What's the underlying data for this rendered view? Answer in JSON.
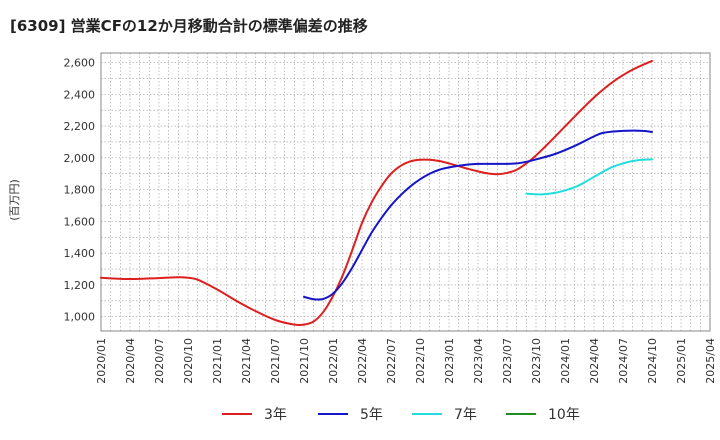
{
  "chart_data": {
    "type": "line",
    "title": "[6309]  営業CFの12か月移動合計の標準偏差の推移",
    "ylabel": "(百万円)",
    "xlabel": "",
    "ylim": [
      910,
      2660
    ],
    "yticks": [
      1000,
      1200,
      1400,
      1600,
      1800,
      2000,
      2200,
      2400,
      2600
    ],
    "ytick_labels": [
      "1,000",
      "1,200",
      "1,400",
      "1,600",
      "1,800",
      "2,000",
      "2,200",
      "2,400",
      "2,600"
    ],
    "xlim": [
      "2020-01",
      "2025-04"
    ],
    "xtick_labels": [
      "2020/01",
      "2020/04",
      "2020/07",
      "2020/10",
      "2021/01",
      "2021/04",
      "2021/07",
      "2021/10",
      "2022/01",
      "2022/04",
      "2022/07",
      "2022/10",
      "2023/01",
      "2023/04",
      "2023/07",
      "2023/10",
      "2024/01",
      "2024/04",
      "2024/07",
      "2024/10",
      "2025/01",
      "2025/04"
    ],
    "grid": true,
    "legend_position": "bottom",
    "series": [
      {
        "name": "3年",
        "color": "#dd1f1f",
        "x": [
          "2020-01",
          "2020-04",
          "2020-07",
          "2020-09",
          "2020-10",
          "2020-11",
          "2021-01",
          "2021-03",
          "2021-05",
          "2021-07",
          "2021-09",
          "2021-10",
          "2021-11",
          "2021-12",
          "2022-01",
          "2022-02",
          "2022-03",
          "2022-04",
          "2022-05",
          "2022-06",
          "2022-07",
          "2022-08",
          "2022-09",
          "2022-10",
          "2022-11",
          "2022-12",
          "2023-01",
          "2023-02",
          "2023-03",
          "2023-04",
          "2023-05",
          "2023-06",
          "2023-07",
          "2023-08",
          "2023-09",
          "2023-10",
          "2023-12",
          "2024-02",
          "2024-04",
          "2024-06",
          "2024-08",
          "2024-10"
        ],
        "values": [
          1245,
          1237,
          1243,
          1248,
          1245,
          1233,
          1172,
          1100,
          1035,
          980,
          950,
          950,
          970,
          1030,
          1130,
          1260,
          1420,
          1590,
          1720,
          1820,
          1900,
          1950,
          1978,
          1988,
          1988,
          1980,
          1965,
          1948,
          1930,
          1915,
          1902,
          1897,
          1905,
          1925,
          1965,
          2015,
          2135,
          2260,
          2380,
          2480,
          2555,
          2610
        ]
      },
      {
        "name": "5年",
        "color": "#1515c8",
        "x": [
          "2021-10",
          "2021-11",
          "2021-12",
          "2022-01",
          "2022-02",
          "2022-03",
          "2022-04",
          "2022-05",
          "2022-06",
          "2022-07",
          "2022-08",
          "2022-09",
          "2022-10",
          "2022-11",
          "2022-12",
          "2023-01",
          "2023-02",
          "2023-03",
          "2023-04",
          "2023-05",
          "2023-06",
          "2023-07",
          "2023-08",
          "2023-09",
          "2023-10",
          "2023-12",
          "2024-02",
          "2024-04",
          "2024-05",
          "2024-07",
          "2024-09",
          "2024-10"
        ],
        "values": [
          1125,
          1110,
          1112,
          1145,
          1215,
          1310,
          1420,
          1530,
          1620,
          1700,
          1765,
          1820,
          1865,
          1900,
          1925,
          1940,
          1950,
          1958,
          1962,
          1962,
          1962,
          1962,
          1965,
          1975,
          1990,
          2025,
          2075,
          2135,
          2158,
          2170,
          2170,
          2163
        ]
      },
      {
        "name": "7年",
        "color": "#22dddd",
        "x": [
          "2023-09",
          "2023-10",
          "2023-11",
          "2023-12",
          "2024-01",
          "2024-02",
          "2024-03",
          "2024-04",
          "2024-05",
          "2024-06",
          "2024-07",
          "2024-08",
          "2024-09",
          "2024-10"
        ],
        "values": [
          1775,
          1770,
          1772,
          1780,
          1795,
          1815,
          1845,
          1880,
          1915,
          1945,
          1965,
          1980,
          1988,
          1990
        ]
      },
      {
        "name": "10年",
        "color": "#228b22",
        "x": [],
        "values": []
      }
    ]
  }
}
